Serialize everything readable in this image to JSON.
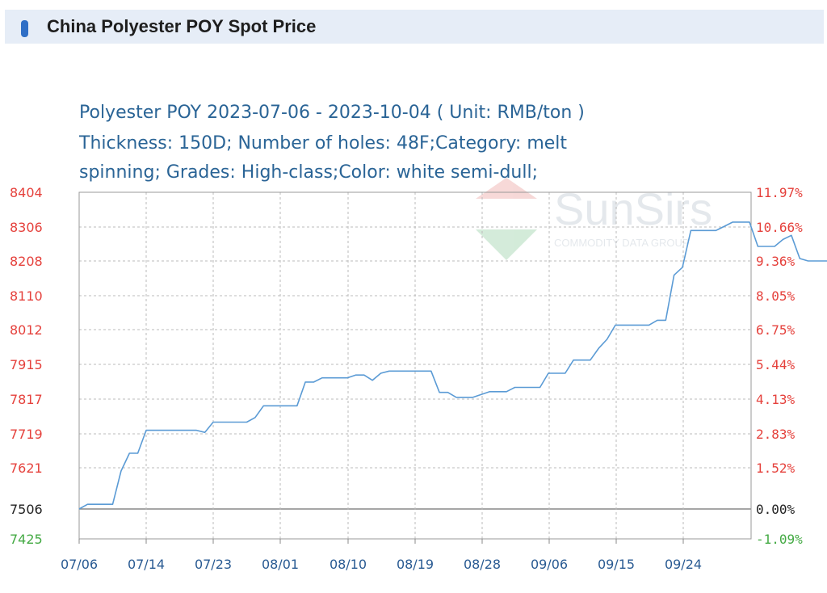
{
  "header": {
    "title": "China Polyester POY Spot Price"
  },
  "chart_data": {
    "type": "line",
    "title_lines": [
      "Polyester POY 2023-07-06 - 2023-10-04     ( Unit: RMB/ton )",
      "Thickness: 150D; Number of holes: 48F;Category: melt",
      "spinning; Grades: High-class;Color: white semi-dull;"
    ],
    "unit": "RMB/ton",
    "ylim": [
      7425,
      8404
    ],
    "base_value": 7506,
    "left_ticks": [
      "8404",
      "8306",
      "8208",
      "8110",
      "8012",
      "7915",
      "7817",
      "7719",
      "7621",
      "7506",
      "7425"
    ],
    "right_ticks": [
      "11.97%",
      "10.66%",
      "9.36%",
      "8.05%",
      "6.75%",
      "5.44%",
      "4.13%",
      "2.83%",
      "1.52%",
      "0.00%",
      "-1.09%"
    ],
    "x_ticks": [
      "07/06",
      "07/14",
      "07/23",
      "08/01",
      "08/10",
      "08/19",
      "08/28",
      "09/06",
      "09/15",
      "09/24"
    ],
    "grid": true,
    "colors": {
      "line": "#5b9bd5",
      "left_axis": "#e5413c",
      "base_axis": "#222222",
      "bottom_axis": "#44aa44",
      "grid": "#bbbbbb",
      "x_labels": "#2a5b93",
      "title": "#2a6496"
    },
    "watermark": {
      "brand": "SunSirs",
      "sub": "COMMODITY DATA GROUP"
    },
    "series": [
      {
        "x": [
          "2023-07-06",
          "2023-07-07",
          "2023-07-08",
          "2023-07-09",
          "2023-07-10",
          "2023-07-11",
          "2023-07-12",
          "2023-07-13",
          "2023-07-14",
          "2023-07-15",
          "2023-07-16",
          "2023-07-17",
          "2023-07-18",
          "2023-07-19",
          "2023-07-20",
          "2023-07-21",
          "2023-07-22",
          "2023-07-23",
          "2023-07-24",
          "2023-07-25",
          "2023-07-26",
          "2023-07-27",
          "2023-07-28",
          "2023-07-29",
          "2023-07-30",
          "2023-07-31",
          "2023-08-01",
          "2023-08-02",
          "2023-08-03",
          "2023-08-04",
          "2023-08-05",
          "2023-08-06",
          "2023-08-07",
          "2023-08-08",
          "2023-08-09",
          "2023-08-10",
          "2023-08-11",
          "2023-08-12",
          "2023-08-13",
          "2023-08-14",
          "2023-08-15",
          "2023-08-16",
          "2023-08-17",
          "2023-08-18",
          "2023-08-19",
          "2023-08-20",
          "2023-08-21",
          "2023-08-22",
          "2023-08-23",
          "2023-08-24",
          "2023-08-25",
          "2023-08-26",
          "2023-08-27",
          "2023-08-28",
          "2023-08-29",
          "2023-08-30",
          "2023-08-31",
          "2023-09-01",
          "2023-09-02",
          "2023-09-03",
          "2023-09-04",
          "2023-09-05",
          "2023-09-06",
          "2023-09-07",
          "2023-09-08",
          "2023-09-09",
          "2023-09-10",
          "2023-09-11",
          "2023-09-12",
          "2023-09-13",
          "2023-09-14",
          "2023-09-15",
          "2023-09-16",
          "2023-09-17",
          "2023-09-18",
          "2023-09-19",
          "2023-09-20",
          "2023-09-21",
          "2023-09-22",
          "2023-09-23",
          "2023-09-24",
          "2023-09-25",
          "2023-09-26",
          "2023-09-27",
          "2023-09-28",
          "2023-09-29",
          "2023-09-30",
          "2023-10-01",
          "2023-10-02",
          "2023-10-03",
          "2023-10-04"
        ],
        "values": [
          7506,
          7519,
          7519,
          7519,
          7519,
          7612,
          7663,
          7663,
          7729,
          7729,
          7729,
          7729,
          7729,
          7729,
          7729,
          7723,
          7752,
          7752,
          7752,
          7752,
          7752,
          7765,
          7798,
          7798,
          7798,
          7798,
          7798,
          7865,
          7865,
          7877,
          7877,
          7877,
          7877,
          7885,
          7885,
          7870,
          7890,
          7896,
          7896,
          7896,
          7896,
          7896,
          7896,
          7836,
          7836,
          7822,
          7822,
          7822,
          7830,
          7838,
          7838,
          7838,
          7850,
          7850,
          7850,
          7850,
          7890,
          7890,
          7890,
          7927,
          7927,
          7927,
          7960,
          7985,
          8025,
          8025,
          8025,
          8025,
          8025,
          8039,
          8039,
          8168,
          8190,
          8296,
          8296,
          8296,
          8296,
          8308,
          8320,
          8320,
          8320,
          8250,
          8250,
          8250,
          8270,
          8282,
          8215,
          8208,
          8208,
          8208,
          8208
        ]
      }
    ]
  }
}
